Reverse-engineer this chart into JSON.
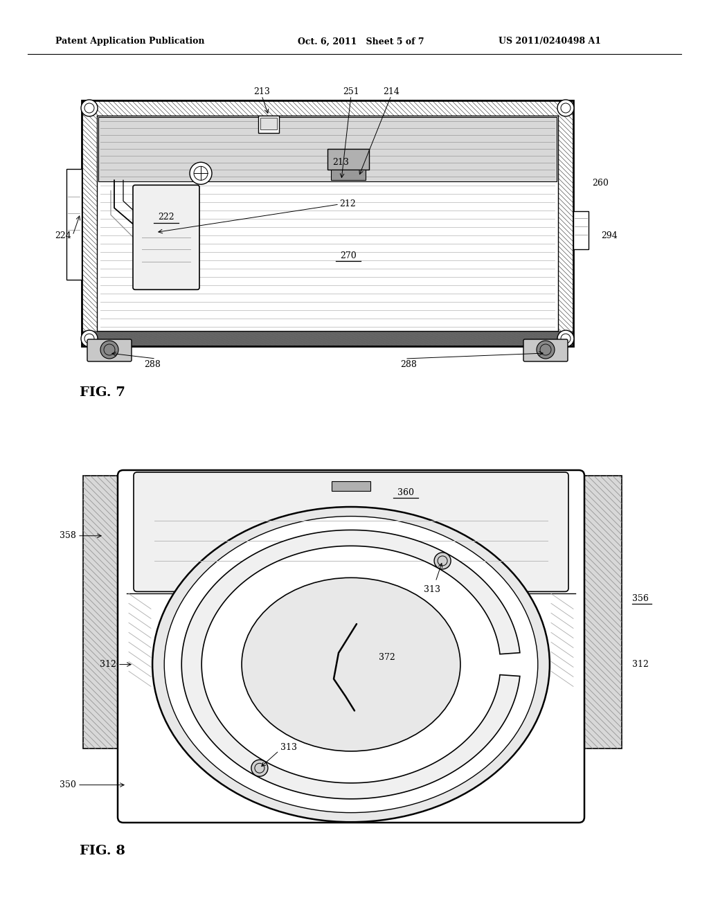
{
  "bg_color": "#ffffff",
  "lc": "#000000",
  "header_left": "Patent Application Publication",
  "header_center": "Oct. 6, 2011   Sheet 5 of 7",
  "header_right": "US 2011/0240498 A1",
  "fig7_label": "FIG. 7",
  "fig8_label": "FIG. 8"
}
